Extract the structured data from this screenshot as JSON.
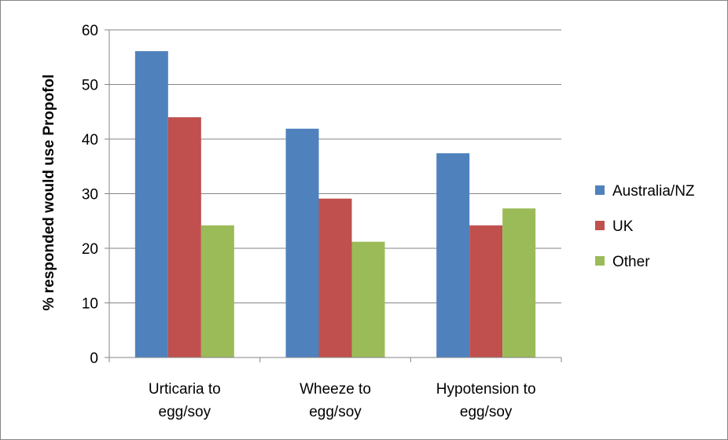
{
  "chart_data": {
    "type": "bar",
    "categories": [
      [
        "Urticaria to",
        "egg/soy"
      ],
      [
        "Wheeze to",
        "egg/soy"
      ],
      [
        "Hypotension to",
        "egg/soy"
      ]
    ],
    "series": [
      {
        "name": "Australia/NZ",
        "color": "#4F81BD",
        "values": [
          56.1,
          41.9,
          37.4
        ]
      },
      {
        "name": "UK",
        "color": "#C0504D",
        "values": [
          44.0,
          29.1,
          24.2
        ]
      },
      {
        "name": "Other",
        "color": "#9BBB59",
        "values": [
          24.2,
          21.2,
          27.3
        ]
      }
    ],
    "ylabel": "% responded would use Propofol",
    "ylim": [
      0,
      60
    ],
    "yticks": [
      0,
      10,
      20,
      30,
      40,
      50,
      60
    ],
    "grid": true,
    "legend": "right"
  }
}
